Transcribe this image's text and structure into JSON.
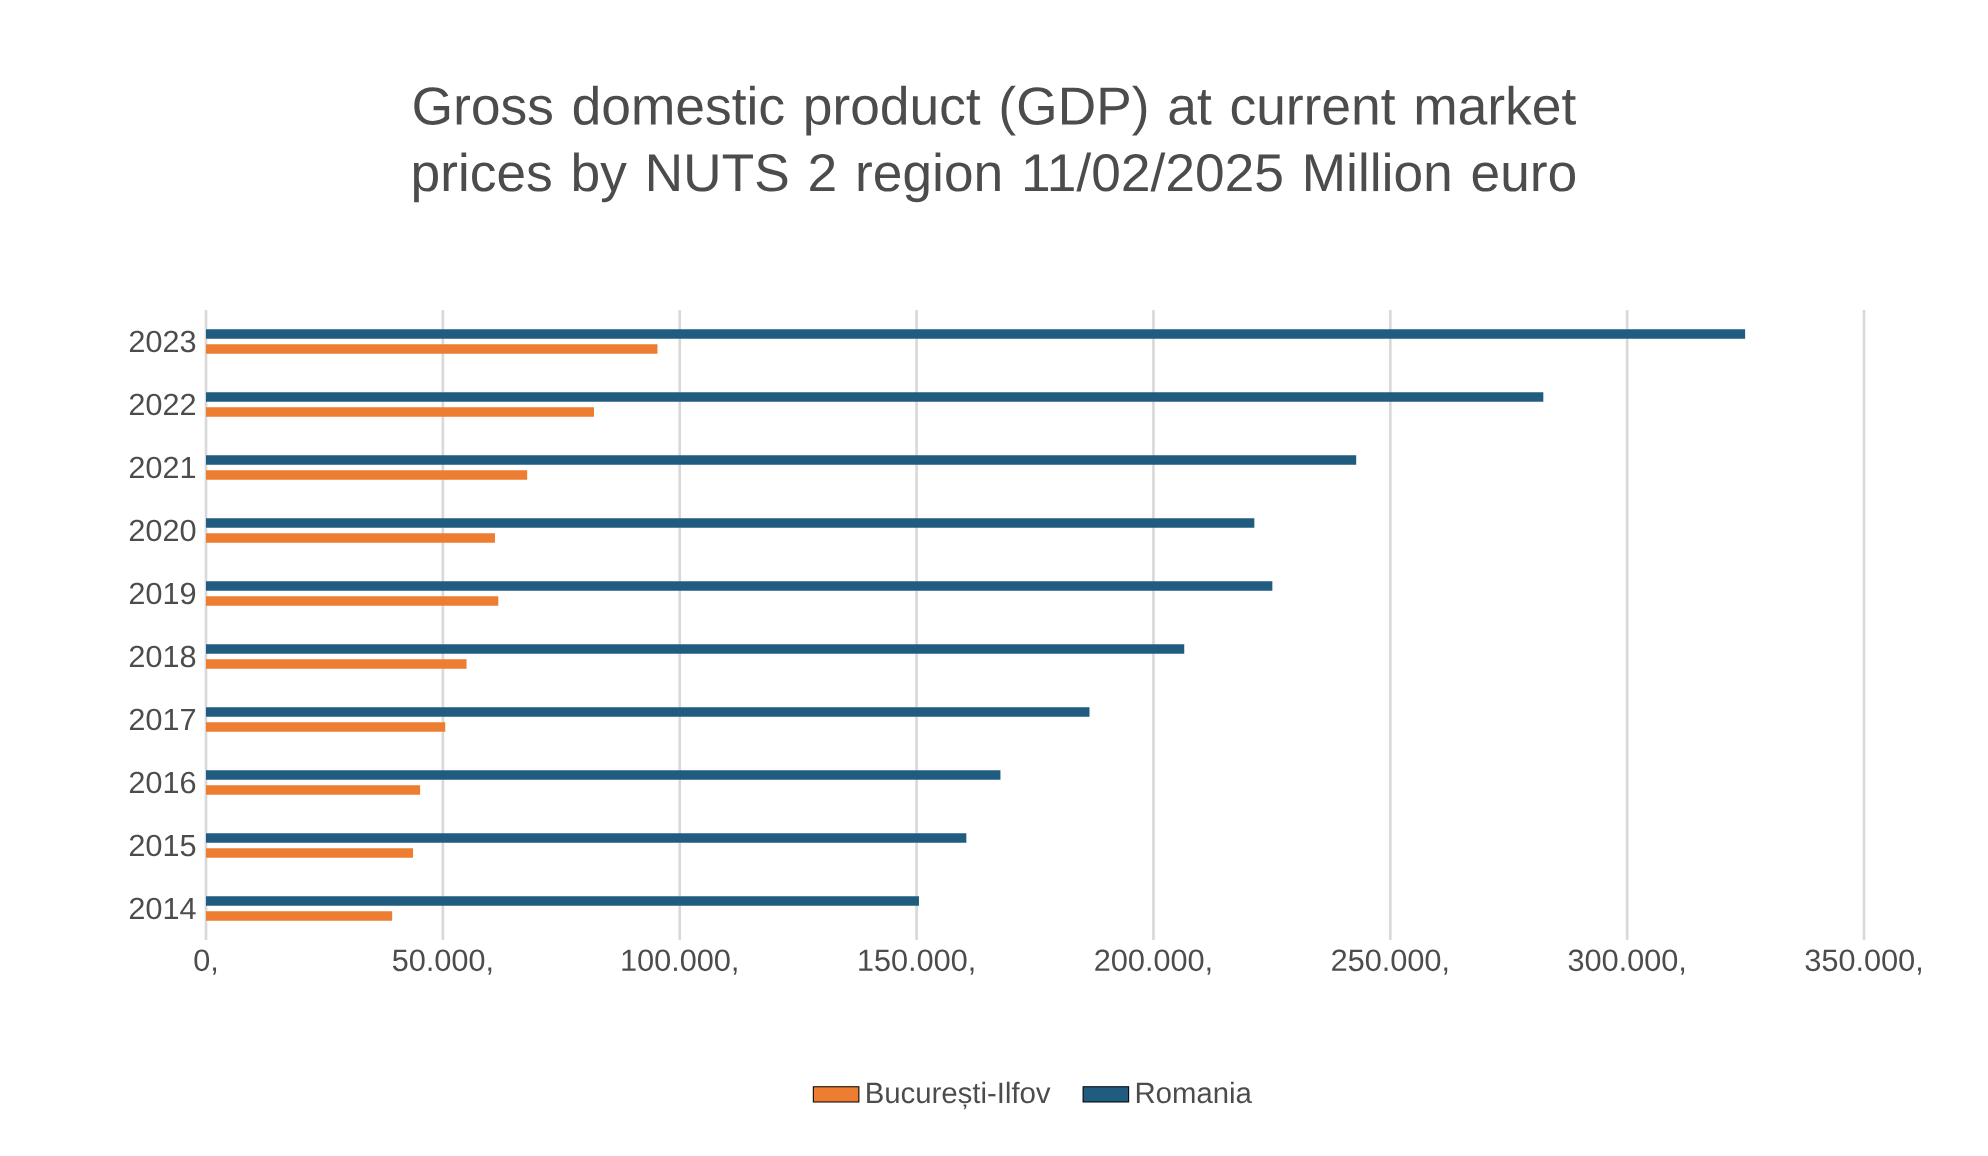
{
  "chart_data": {
    "type": "bar",
    "orientation": "horizontal",
    "title": "Gross domestic product (GDP) at current market prices by NUTS 2 region 11/02/2025 Million euro",
    "categories": [
      "2023",
      "2022",
      "2021",
      "2020",
      "2019",
      "2018",
      "2017",
      "2016",
      "2015",
      "2014"
    ],
    "series": [
      {
        "name": "București-Ilfov",
        "color": "#ed7d31",
        "values": [
          95300,
          81900,
          67800,
          61000,
          61700,
          55000,
          50500,
          45200,
          43700,
          39300
        ]
      },
      {
        "name": "Romania",
        "color": "#1f5c80",
        "values": [
          324900,
          282300,
          242800,
          221300,
          225100,
          206500,
          186500,
          167700,
          160500,
          150500
        ]
      }
    ],
    "xlim": [
      0,
      350000
    ],
    "xticks": [
      {
        "value": 0,
        "label": "0,"
      },
      {
        "value": 50000,
        "label": "50.000,"
      },
      {
        "value": 100000,
        "label": "100.000,"
      },
      {
        "value": 150000,
        "label": "150.000,"
      },
      {
        "value": 200000,
        "label": "200.000,"
      },
      {
        "value": 250000,
        "label": "250.000,"
      },
      {
        "value": 300000,
        "label": "300.000,"
      },
      {
        "value": 350000,
        "label": "350.000,"
      }
    ],
    "grid": "x",
    "legend": "bottom"
  }
}
